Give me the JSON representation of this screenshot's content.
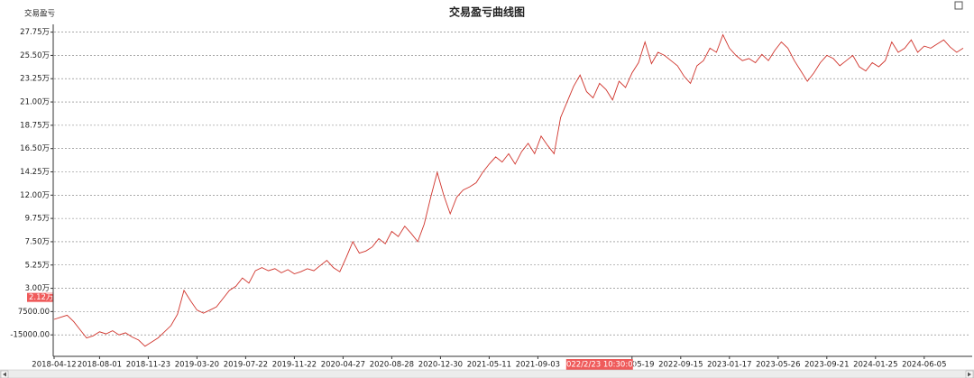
{
  "chart_data": {
    "type": "line",
    "title": "交易盈亏曲线图",
    "ylabel": "交易盈亏",
    "color": "#d0342c",
    "grid": true,
    "xlim": [
      0,
      140
    ],
    "ylim": [
      -34000,
      285000
    ],
    "yticks": [
      {
        "value": 277500,
        "label": "27.75万"
      },
      {
        "value": 255000,
        "label": "25.50万"
      },
      {
        "value": 232500,
        "label": "23.25万"
      },
      {
        "value": 210000,
        "label": "21.00万"
      },
      {
        "value": 187500,
        "label": "18.75万"
      },
      {
        "value": 165000,
        "label": "16.50万"
      },
      {
        "value": 142500,
        "label": "14.25万"
      },
      {
        "value": 120000,
        "label": "12.00万"
      },
      {
        "value": 97500,
        "label": "9.75万"
      },
      {
        "value": 75000,
        "label": "7.50万"
      },
      {
        "value": 52500,
        "label": "5.25万"
      },
      {
        "value": 30000,
        "label": "3.00万"
      },
      {
        "value": 7500,
        "label": "7500.00"
      },
      {
        "value": -15000,
        "label": "-15000.00"
      }
    ],
    "xticks": [
      {
        "value": 0,
        "label": "2018-04-12"
      },
      {
        "value": 7,
        "label": "2018-08-01"
      },
      {
        "value": 14.5,
        "label": "2018-11-23"
      },
      {
        "value": 22,
        "label": "2019-03-20"
      },
      {
        "value": 29.5,
        "label": "2019-07-22"
      },
      {
        "value": 37,
        "label": "2019-11-22"
      },
      {
        "value": 44.5,
        "label": "2020-04-27"
      },
      {
        "value": 52,
        "label": "2020-08-28"
      },
      {
        "value": 59.5,
        "label": "2020-12-30"
      },
      {
        "value": 67,
        "label": "2021-05-11"
      },
      {
        "value": 74.5,
        "label": "2021-09-03"
      },
      {
        "value": 89,
        "label": "2022-05-19"
      },
      {
        "value": 96.5,
        "label": "2022-09-15"
      },
      {
        "value": 104,
        "label": "2023-01-17"
      },
      {
        "value": 111.5,
        "label": "2023-05-26"
      },
      {
        "value": 119,
        "label": "2023-09-21"
      },
      {
        "value": 126.5,
        "label": "2024-01-25"
      },
      {
        "value": 134,
        "label": "2024-06-05"
      }
    ],
    "cursor": {
      "x": 84,
      "y": 21200,
      "y_label": "2.12万",
      "x_label": "2022/2/23 10:30:00"
    },
    "values": [
      0,
      2000,
      4000,
      -2000,
      -10000,
      -18000,
      -16000,
      -12000,
      -14000,
      -11000,
      -15000,
      -13000,
      -17000,
      -20000,
      -26000,
      -22000,
      -18000,
      -12000,
      -6000,
      5000,
      28000,
      18000,
      9000,
      6000,
      9000,
      12000,
      20000,
      28000,
      32000,
      40000,
      35000,
      47000,
      50000,
      47000,
      49000,
      45000,
      48000,
      44000,
      46000,
      49000,
      47000,
      52000,
      57000,
      50000,
      46000,
      60000,
      75000,
      64000,
      66000,
      70000,
      78000,
      73000,
      85000,
      80000,
      90000,
      83000,
      75000,
      92000,
      118000,
      142000,
      120000,
      102000,
      118000,
      125000,
      128000,
      132000,
      142000,
      150000,
      157000,
      152000,
      160000,
      150000,
      162000,
      170000,
      160000,
      177000,
      168000,
      160000,
      195000,
      210000,
      225000,
      236000,
      220000,
      214000,
      228000,
      222000,
      212000,
      230000,
      224000,
      238000,
      248000,
      268000,
      247000,
      258000,
      255000,
      250000,
      245000,
      235000,
      228000,
      245000,
      250000,
      262000,
      258000,
      275000,
      262000,
      255000,
      250000,
      252000,
      248000,
      256000,
      250000,
      260000,
      268000,
      262000,
      250000,
      240000,
      230000,
      238000,
      248000,
      255000,
      252000,
      245000,
      250000,
      255000,
      244000,
      240000,
      248000,
      244000,
      250000,
      268000,
      258000,
      262000,
      270000,
      258000,
      264000,
      262000,
      266000,
      270000,
      263000,
      258000,
      262000
    ]
  }
}
